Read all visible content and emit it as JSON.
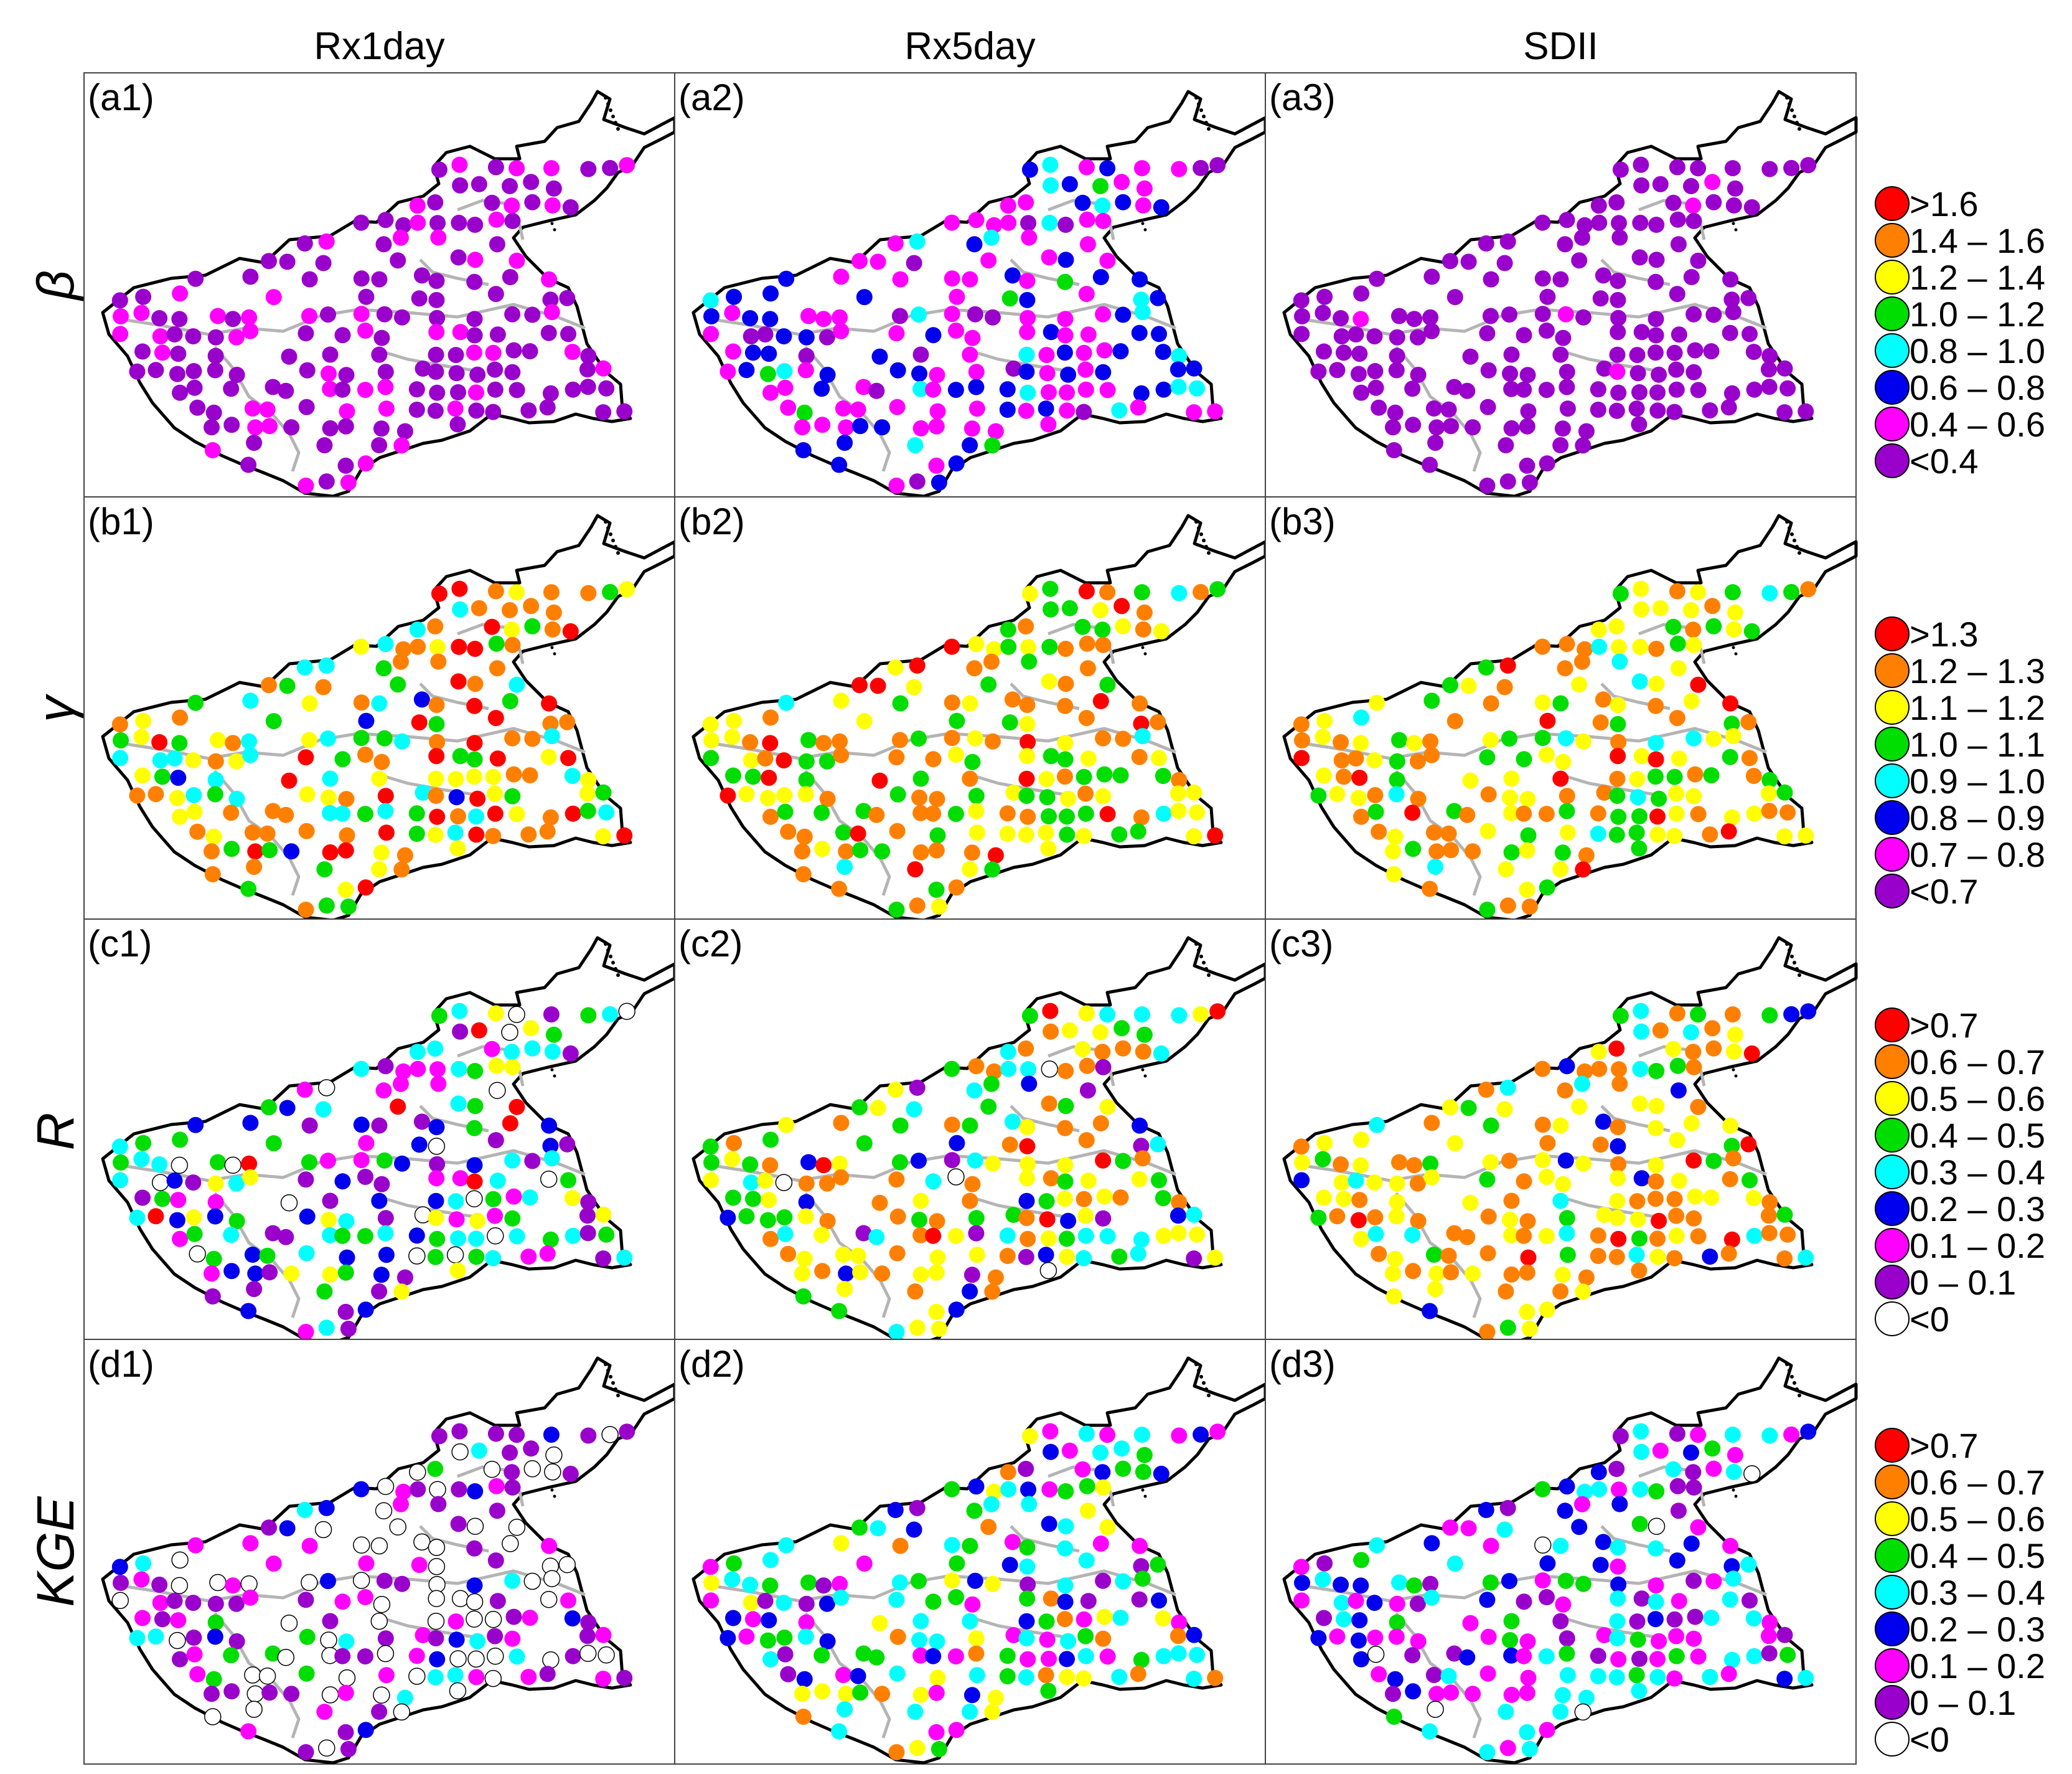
{
  "columns": [
    "Rx1day",
    "Rx5day",
    "SDII"
  ],
  "colors": {
    "red": "#ff0000",
    "orange": "#ff8000",
    "yellow": "#ffff00",
    "green": "#00dd00",
    "cyan": "#00ffff",
    "blue": "#0000ee",
    "magenta": "#ff00ff",
    "purple": "#9900cc",
    "white": "#ffffff",
    "boundary": "#000000",
    "river": "#b4b4b4"
  },
  "rows": [
    {
      "metric": "β",
      "panels": [
        "(a1)",
        "(a2)",
        "(a3)"
      ],
      "legend": [
        {
          "label": ">1.6",
          "color": "red"
        },
        {
          "label": "1.4 – 1.6",
          "color": "orange"
        },
        {
          "label": "1.2 – 1.4",
          "color": "yellow"
        },
        {
          "label": "1.0 – 1.2",
          "color": "green"
        },
        {
          "label": "0.8 – 1.0",
          "color": "cyan"
        },
        {
          "label": "0.6 – 0.8",
          "color": "blue"
        },
        {
          "label": "0.4 – 0.6",
          "color": "magenta"
        },
        {
          "label": "<0.4",
          "color": "purple"
        }
      ],
      "distributions": [
        {
          "purple": 0.68,
          "magenta": 0.32
        },
        {
          "magenta": 0.45,
          "blue": 0.33,
          "purple": 0.08,
          "cyan": 0.1,
          "green": 0.04
        },
        {
          "purple": 0.96,
          "magenta": 0.04
        }
      ]
    },
    {
      "metric": "γ",
      "panels": [
        "(b1)",
        "(b2)",
        "(b3)"
      ],
      "legend": [
        {
          "label": ">1.3",
          "color": "red"
        },
        {
          "label": "1.2 – 1.3",
          "color": "orange"
        },
        {
          "label": "1.1 – 1.2",
          "color": "yellow"
        },
        {
          "label": "1.0 – 1.1",
          "color": "green"
        },
        {
          "label": "0.9 – 1.0",
          "color": "cyan"
        },
        {
          "label": "0.8 – 0.9",
          "color": "blue"
        },
        {
          "label": "0.7 – 0.8",
          "color": "magenta"
        },
        {
          "label": "<0.7",
          "color": "purple"
        }
      ],
      "distributions": [
        {
          "orange": 0.26,
          "yellow": 0.22,
          "red": 0.16,
          "green": 0.16,
          "cyan": 0.18,
          "blue": 0.02
        },
        {
          "orange": 0.3,
          "green": 0.3,
          "yellow": 0.24,
          "red": 0.12,
          "cyan": 0.04
        },
        {
          "yellow": 0.38,
          "orange": 0.26,
          "green": 0.22,
          "red": 0.08,
          "cyan": 0.06
        }
      ]
    },
    {
      "metric": "R",
      "panels": [
        "(c1)",
        "(c2)",
        "(c3)"
      ],
      "legend": [
        {
          "label": ">0.7",
          "color": "red"
        },
        {
          "label": "0.6 – 0.7",
          "color": "orange"
        },
        {
          "label": "0.5 – 0.6",
          "color": "yellow"
        },
        {
          "label": "0.4 – 0.5",
          "color": "green"
        },
        {
          "label": "0.3 – 0.4",
          "color": "cyan"
        },
        {
          "label": "0.2 – 0.3",
          "color": "blue"
        },
        {
          "label": "0.1 – 0.2",
          "color": "magenta"
        },
        {
          "label": "0 – 0.1",
          "color": "purple"
        },
        {
          "label": "<0",
          "color": "white"
        }
      ],
      "distributions": [
        {
          "cyan": 0.16,
          "blue": 0.16,
          "magenta": 0.16,
          "purple": 0.14,
          "green": 0.14,
          "yellow": 0.1,
          "white": 0.1,
          "red": 0.04
        },
        {
          "orange": 0.3,
          "yellow": 0.24,
          "green": 0.16,
          "cyan": 0.12,
          "blue": 0.08,
          "purple": 0.04,
          "red": 0.03,
          "white": 0.03
        },
        {
          "orange": 0.34,
          "yellow": 0.3,
          "green": 0.14,
          "cyan": 0.1,
          "red": 0.06,
          "blue": 0.06
        }
      ]
    },
    {
      "metric": "KGE",
      "panels": [
        "(d1)",
        "(d2)",
        "(d3)"
      ],
      "legend": [
        {
          "label": ">0.7",
          "color": "red"
        },
        {
          "label": "0.6 – 0.7",
          "color": "orange"
        },
        {
          "label": "0.5 – 0.6",
          "color": "yellow"
        },
        {
          "label": "0.4 – 0.5",
          "color": "green"
        },
        {
          "label": "0.3 – 0.4",
          "color": "cyan"
        },
        {
          "label": "0.2 – 0.3",
          "color": "blue"
        },
        {
          "label": "0.1 – 0.2",
          "color": "magenta"
        },
        {
          "label": "0 – 0.1",
          "color": "purple"
        },
        {
          "label": "<0",
          "color": "white"
        }
      ],
      "distributions": [
        {
          "white": 0.4,
          "purple": 0.3,
          "magenta": 0.14,
          "blue": 0.08,
          "cyan": 0.05,
          "green": 0.03
        },
        {
          "cyan": 0.2,
          "green": 0.2,
          "magenta": 0.2,
          "yellow": 0.12,
          "blue": 0.12,
          "purple": 0.08,
          "orange": 0.08
        },
        {
          "magenta": 0.3,
          "cyan": 0.22,
          "blue": 0.2,
          "purple": 0.15,
          "green": 0.1,
          "white": 0.03
        }
      ]
    }
  ]
}
